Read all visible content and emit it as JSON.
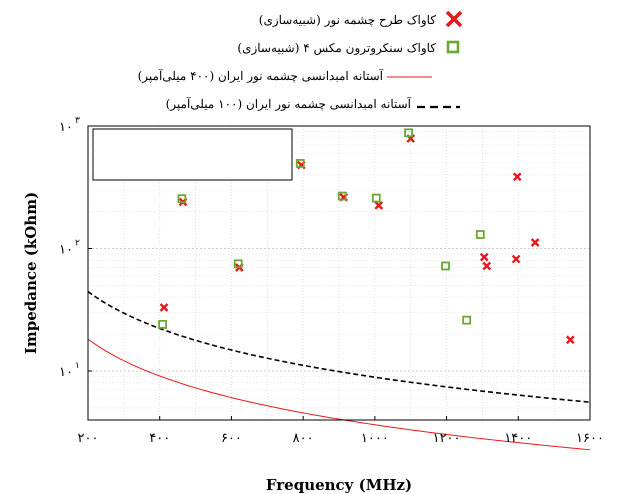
{
  "chart_data": {
    "type": "scatter",
    "xlabel": "Frequency (MHz)",
    "ylabel": "Impedance (kOhm)",
    "xlim": [
      200,
      1600
    ],
    "ylim_log10": [
      0.6,
      3.0
    ],
    "y_scale": "log",
    "grid": true,
    "legend_placement": "top-right outside",
    "x_ticks": [
      {
        "value": 200,
        "label": "۲۰۰"
      },
      {
        "value": 400,
        "label": "۴۰۰"
      },
      {
        "value": 600,
        "label": "۶۰۰"
      },
      {
        "value": 800,
        "label": "۸۰۰"
      },
      {
        "value": 1000,
        "label": "۱۰۰۰"
      },
      {
        "value": 1200,
        "label": "۱۲۰۰"
      },
      {
        "value": 1400,
        "label": "۱۴۰۰"
      },
      {
        "value": 1600,
        "label": "۱۶۰۰"
      }
    ],
    "y_ticks": [
      {
        "value": 10,
        "label": "۱۰",
        "exp": "۱"
      },
      {
        "value": 100,
        "label": "۱۰",
        "exp": "۲"
      },
      {
        "value": 1000,
        "label": "۱۰",
        "exp": "۳"
      }
    ],
    "series": [
      {
        "name": "کاواک طرح چشمه نور (شبیه‌سازی)",
        "marker": "x",
        "color": "#e8191d",
        "points": [
          {
            "x": 412,
            "y": 33
          },
          {
            "x": 465,
            "y": 240
          },
          {
            "x": 622,
            "y": 70
          },
          {
            "x": 795,
            "y": 480
          },
          {
            "x": 913,
            "y": 262
          },
          {
            "x": 1011,
            "y": 225
          },
          {
            "x": 1100,
            "y": 790
          },
          {
            "x": 1305,
            "y": 85
          },
          {
            "x": 1312,
            "y": 72
          },
          {
            "x": 1394,
            "y": 82
          },
          {
            "x": 1397,
            "y": 385
          },
          {
            "x": 1447,
            "y": 112
          },
          {
            "x": 1545,
            "y": 18
          }
        ]
      },
      {
        "name": "کاواک سنکروترون مکس ۴ (شبیه‌سازی)",
        "marker": "square",
        "color": "#6aa832",
        "points": [
          {
            "x": 408,
            "y": 24
          },
          {
            "x": 462,
            "y": 255
          },
          {
            "x": 619,
            "y": 75
          },
          {
            "x": 792,
            "y": 495
          },
          {
            "x": 909,
            "y": 268
          },
          {
            "x": 1004,
            "y": 258
          },
          {
            "x": 1094,
            "y": 880
          },
          {
            "x": 1197,
            "y": 72
          },
          {
            "x": 1256,
            "y": 26
          },
          {
            "x": 1294,
            "y": 130
          }
        ]
      },
      {
        "name": "آستانه امبدانسی چشمه نور ایران (۴۰۰ میلی‌آمپر)",
        "marker": "line",
        "color": "#e8191d",
        "dash": "solid",
        "points": [
          {
            "x": 200,
            "y": 18.2
          },
          {
            "x": 300,
            "y": 12.1
          },
          {
            "x": 400,
            "y": 9.1
          },
          {
            "x": 500,
            "y": 7.3
          },
          {
            "x": 600,
            "y": 6.06
          },
          {
            "x": 800,
            "y": 4.55
          },
          {
            "x": 1000,
            "y": 3.64
          },
          {
            "x": 1200,
            "y": 3.03
          },
          {
            "x": 1400,
            "y": 2.6
          },
          {
            "x": 1600,
            "y": 2.27
          }
        ]
      },
      {
        "name": "آستانه امبدانسی چشمه نور ایران (۱۰۰ میلی‌آمپر)",
        "marker": "line",
        "color": "#000000",
        "dash": "dashed",
        "points": [
          {
            "x": 200,
            "y": 44.5
          },
          {
            "x": 300,
            "y": 29.7
          },
          {
            "x": 400,
            "y": 22.2
          },
          {
            "x": 500,
            "y": 17.8
          },
          {
            "x": 600,
            "y": 14.8
          },
          {
            "x": 800,
            "y": 11.1
          },
          {
            "x": 1000,
            "y": 8.9
          },
          {
            "x": 1200,
            "y": 7.42
          },
          {
            "x": 1400,
            "y": 6.36
          },
          {
            "x": 1600,
            "y": 5.56
          }
        ]
      }
    ]
  }
}
